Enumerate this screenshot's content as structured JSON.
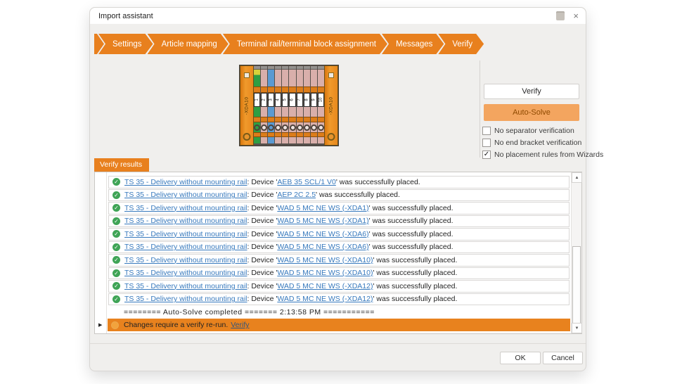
{
  "window": {
    "title": "Import assistant"
  },
  "icons": {
    "close": "×",
    "check": "✓",
    "scroll_up": "▲",
    "scroll_down": "▼",
    "row_marker": "▶"
  },
  "colors": {
    "accent_orange": "#E8801E",
    "autosolve_bg": "#F3A55F",
    "autosolve_text": "#8F4A00",
    "link_blue": "#3779BD",
    "success_green": "#3FA456",
    "warning_row_bg": "#E8821E",
    "dialog_bg": "#F0EFED"
  },
  "tabs": [
    {
      "label": "Settings"
    },
    {
      "label": "Article mapping"
    },
    {
      "label": "Terminal rail/terminal block assignment"
    },
    {
      "label": "Messages"
    },
    {
      "label": "Verify"
    }
  ],
  "preview": {
    "left_bracket_label": "-XDA10",
    "right_bracket_label": "-XDA10",
    "terminal_numbers": [
      "1",
      "2",
      "3",
      "4",
      "5",
      "6",
      "7",
      "8",
      "9",
      "10"
    ]
  },
  "actions": {
    "verify_label": "Verify",
    "autosolve_label": "Auto-Solve",
    "options": [
      {
        "label": "No separator verification",
        "checked": false
      },
      {
        "label": "No end bracket verification",
        "checked": false
      },
      {
        "label": "No placement rules from Wizards",
        "checked": true
      }
    ]
  },
  "results": {
    "tab_label": "Verify results",
    "device_prefix": ": Device '",
    "success_suffix": "' was successfully placed.",
    "items": [
      {
        "rail": "TS 35 - Delivery without mounting rail",
        "device": "AEB 35 SCL/1 V0"
      },
      {
        "rail": "TS 35 - Delivery without mounting rail",
        "device": "AEP 2C 2.5"
      },
      {
        "rail": "TS 35 - Delivery without mounting rail",
        "device": "WAD 5 MC NE WS (-XDA1)"
      },
      {
        "rail": "TS 35 - Delivery without mounting rail",
        "device": "WAD 5 MC NE WS (-XDA1)"
      },
      {
        "rail": "TS 35 - Delivery without mounting rail",
        "device": "WAD 5 MC NE WS (-XDA6)"
      },
      {
        "rail": "TS 35 - Delivery without mounting rail",
        "device": "WAD 5 MC NE WS (-XDA6)"
      },
      {
        "rail": "TS 35 - Delivery without mounting rail",
        "device": "WAD 5 MC NE WS (-XDA10)"
      },
      {
        "rail": "TS 35 - Delivery without mounting rail",
        "device": "WAD 5 MC NE WS (-XDA10)"
      },
      {
        "rail": "TS 35 - Delivery without mounting rail",
        "device": "WAD 5 MC NE WS (-XDA12)"
      },
      {
        "rail": "TS 35 - Delivery without mounting rail",
        "device": "WAD 5 MC NE WS (-XDA12)"
      }
    ],
    "info_row": "======== Auto-Solve completed ======= 2:13:58 PM ===========",
    "warning": {
      "text": "Changes require a verify re-run.",
      "link_label": "Verify"
    }
  },
  "footer": {
    "ok_label": "OK",
    "cancel_label": "Cancel"
  }
}
